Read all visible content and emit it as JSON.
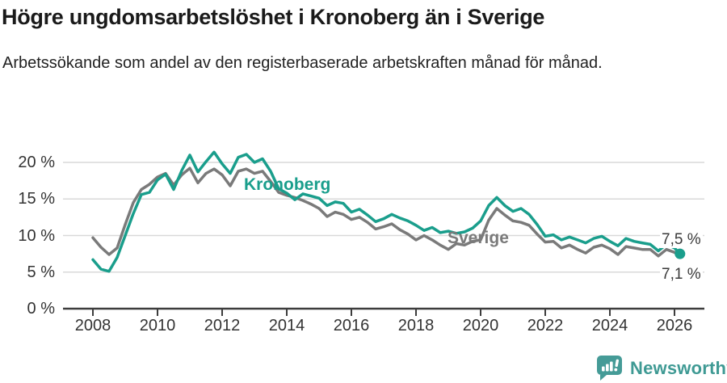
{
  "title": "Högre ungdomsarbetslöshet i Kronoberg än i Sverige",
  "subtitle": "Arbetssökande som andel av den registerbaserade arbetskraften månad för månad.",
  "footer": {
    "brand": "Newsworthy"
  },
  "colors": {
    "kronoberg": "#1a9e8c",
    "sverige": "#7a7a7a",
    "grid": "#d9d9d9",
    "axis": "#3d3d3d",
    "text": "#333333",
    "logo": "#459b97",
    "logo_text": "#3f9a94"
  },
  "chart_data": {
    "type": "line",
    "unit": "%",
    "ylim": [
      0,
      22
    ],
    "xlim": [
      2007.1,
      2026.9
    ],
    "grid": "horizontal",
    "legend_position": "inline-labels",
    "y_ticks": [
      {
        "value": 0,
        "label": "0 %"
      },
      {
        "value": 5,
        "label": "5 %"
      },
      {
        "value": 10,
        "label": "10 %"
      },
      {
        "value": 15,
        "label": "15 %"
      },
      {
        "value": 20,
        "label": "20 %"
      }
    ],
    "x_label_ticks": [
      2008,
      2010,
      2012,
      2014,
      2016,
      2018,
      2020,
      2022,
      2024,
      2026
    ],
    "x": [
      2008,
      2008.25,
      2008.5,
      2008.75,
      2009,
      2009.25,
      2009.5,
      2009.75,
      2010,
      2010.25,
      2010.5,
      2010.75,
      2011,
      2011.25,
      2011.5,
      2011.75,
      2012,
      2012.25,
      2012.5,
      2012.75,
      2013,
      2013.25,
      2013.5,
      2013.75,
      2014,
      2014.25,
      2014.5,
      2014.75,
      2015,
      2015.25,
      2015.5,
      2015.75,
      2016,
      2016.25,
      2016.5,
      2016.75,
      2017,
      2017.25,
      2017.5,
      2017.75,
      2018,
      2018.25,
      2018.5,
      2018.75,
      2019,
      2019.25,
      2019.5,
      2019.75,
      2020,
      2020.25,
      2020.5,
      2020.75,
      2021,
      2021.25,
      2021.5,
      2021.75,
      2022,
      2022.25,
      2022.5,
      2022.75,
      2023,
      2023.25,
      2023.5,
      2023.75,
      2024,
      2024.25,
      2024.5,
      2024.75,
      2025,
      2025.25,
      2025.5,
      2025.75,
      2026,
      2026.17
    ],
    "series": [
      {
        "name": "Kronoberg",
        "label": "Kronoberg",
        "color_key": "kronoberg",
        "end_label": "7,5 %",
        "end_value": 7.5,
        "values": [
          6.7,
          5.4,
          5.1,
          7.0,
          10.0,
          13.0,
          15.6,
          15.9,
          17.6,
          18.4,
          16.3,
          18.9,
          21.0,
          18.7,
          20.1,
          21.4,
          19.8,
          18.5,
          20.7,
          21.1,
          20.0,
          20.5,
          18.8,
          16.4,
          15.8,
          14.9,
          15.7,
          15.4,
          15.1,
          14.1,
          14.6,
          14.4,
          13.2,
          13.6,
          12.8,
          11.9,
          12.3,
          12.9,
          12.4,
          12.0,
          11.4,
          10.7,
          11.1,
          10.4,
          10.6,
          10.3,
          10.5,
          11.0,
          12.0,
          14.1,
          15.2,
          14.1,
          13.3,
          13.7,
          12.9,
          11.5,
          9.9,
          10.1,
          9.4,
          9.8,
          9.4,
          9.0,
          9.6,
          9.9,
          9.2,
          8.6,
          9.6,
          9.2,
          9.0,
          8.8,
          7.9,
          8.8,
          8.3,
          7.5
        ]
      },
      {
        "name": "Sverige",
        "label": "Sverige",
        "color_key": "sverige",
        "end_label": "7,1 %",
        "end_value": 7.1,
        "values": [
          9.7,
          8.4,
          7.4,
          8.3,
          11.5,
          14.5,
          16.3,
          17.0,
          18.0,
          18.5,
          16.9,
          18.3,
          19.2,
          17.2,
          18.5,
          19.1,
          18.3,
          16.8,
          18.8,
          19.1,
          18.5,
          18.8,
          17.4,
          15.9,
          15.5,
          15.2,
          14.8,
          14.3,
          13.7,
          12.6,
          13.2,
          12.9,
          12.2,
          12.5,
          11.8,
          10.9,
          11.2,
          11.6,
          10.8,
          10.2,
          9.4,
          10.0,
          9.4,
          8.7,
          8.1,
          8.9,
          8.7,
          9.2,
          9.4,
          12.1,
          13.7,
          12.8,
          12.0,
          11.8,
          11.4,
          10.2,
          9.1,
          9.2,
          8.3,
          8.7,
          8.1,
          7.6,
          8.4,
          8.7,
          8.2,
          7.4,
          8.5,
          8.3,
          8.1,
          8.1,
          7.2,
          8.1,
          7.7,
          7.1
        ]
      }
    ]
  }
}
